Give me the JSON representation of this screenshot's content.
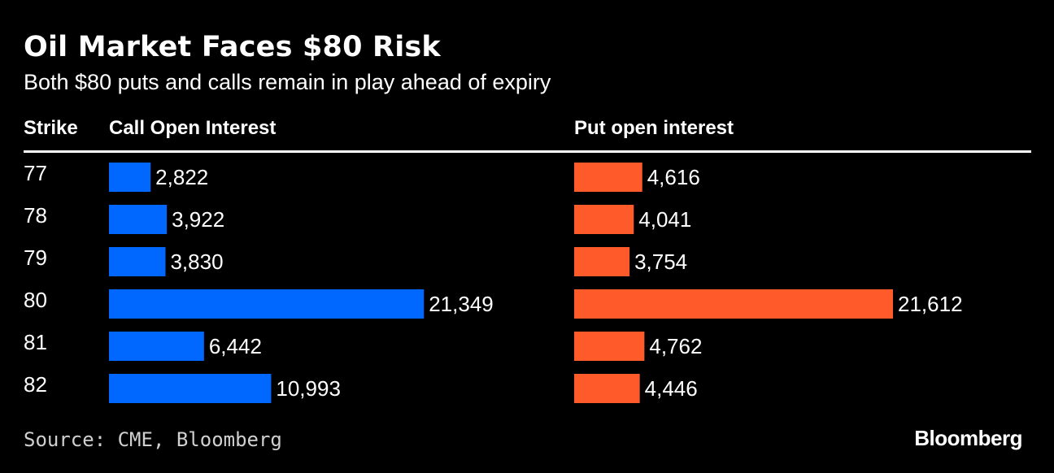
{
  "title": "Oil Market Faces $80 Risk",
  "subtitle": "Both $80 puts and calls remain in play ahead of expiry",
  "headers": {
    "strike": "Strike",
    "call": "Call Open Interest",
    "put": "Put open interest"
  },
  "source": "Source: CME, Bloomberg",
  "brand": "Bloomberg",
  "colors": {
    "background": "#000000",
    "call_bar": "#0068ff",
    "put_bar": "#ff5a2a",
    "text": "#ffffff"
  },
  "chart_data": {
    "type": "bar",
    "orientation": "horizontal",
    "categories": [
      "77",
      "78",
      "79",
      "80",
      "81",
      "82"
    ],
    "categories_label": "Strike",
    "series": [
      {
        "name": "Call Open Interest",
        "values": [
          2822,
          3922,
          3830,
          21349,
          6442,
          10993
        ],
        "labels": [
          "2,822",
          "3,922",
          "3,830",
          "21,349",
          "6,442",
          "10,993"
        ],
        "color": "#0068ff"
      },
      {
        "name": "Put open interest",
        "values": [
          4616,
          4041,
          3754,
          21612,
          4762,
          4446
        ],
        "labels": [
          "4,616",
          "4,041",
          "3,754",
          "21,612",
          "4,762",
          "4,446"
        ],
        "color": "#ff5a2a"
      }
    ],
    "title": "Oil Market Faces $80 Risk",
    "xlabel": "",
    "ylabel": "Strike",
    "xlim": [
      0,
      21612
    ]
  }
}
